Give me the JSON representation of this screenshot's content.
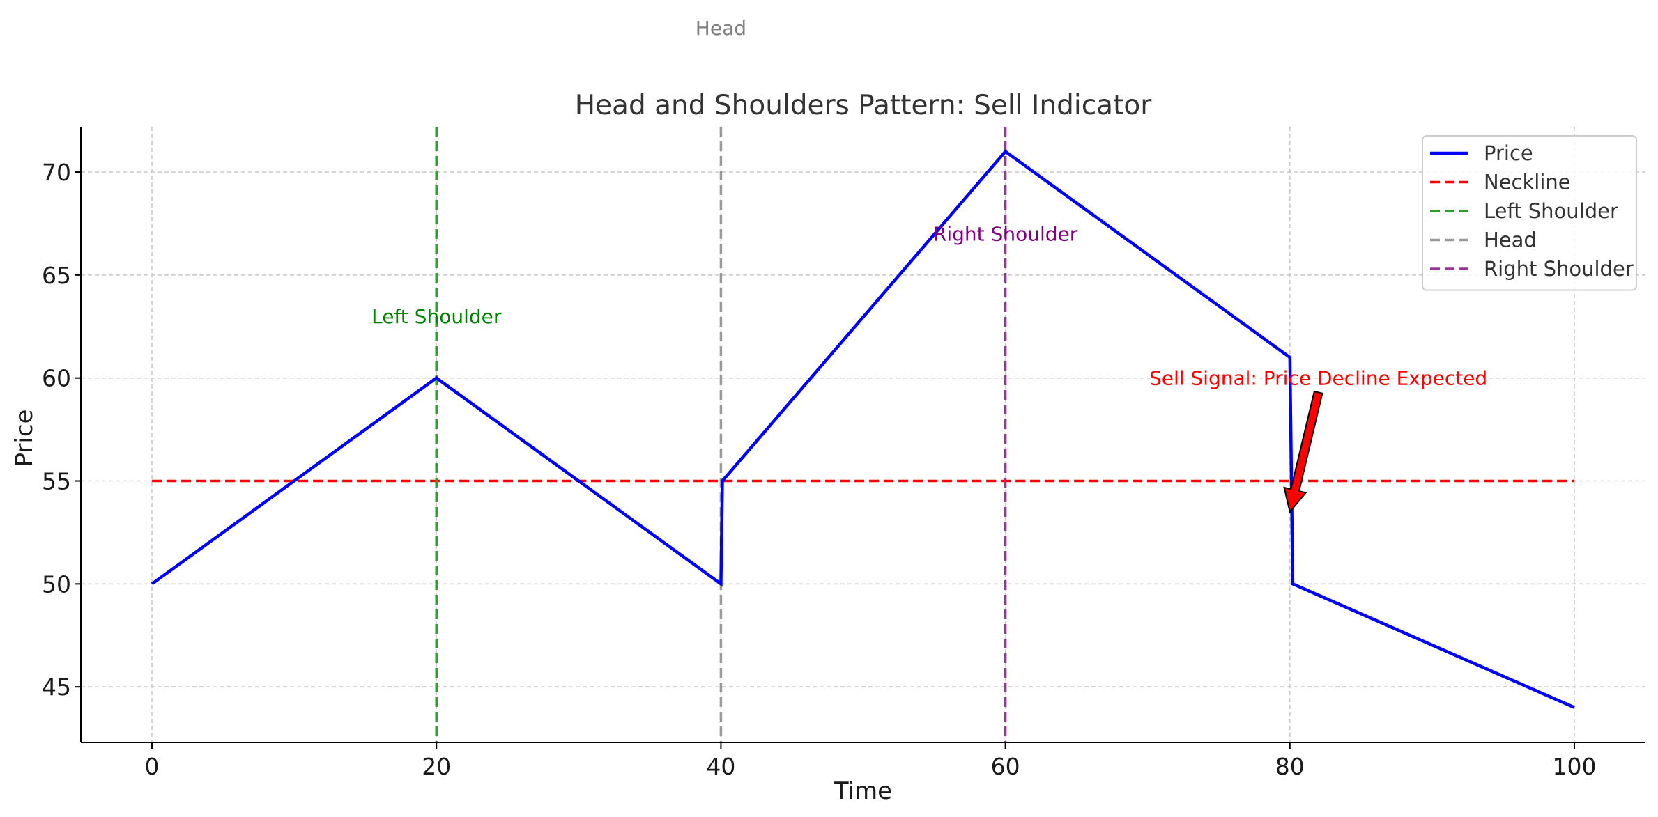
{
  "chart_data": {
    "type": "line",
    "title": "Head and Shoulders Pattern: Sell Indicator",
    "xlabel": "Time",
    "ylabel": "Price",
    "xlim": [
      -5,
      105
    ],
    "ylim": [
      42.3,
      72.2
    ],
    "xticks": [
      0,
      20,
      40,
      60,
      80,
      100
    ],
    "yticks": [
      45,
      50,
      55,
      60,
      65,
      70
    ],
    "grid": true,
    "legend_position": "top-right",
    "series": [
      {
        "name": "Price",
        "color": "#0000ff",
        "style": "solid",
        "points": [
          [
            0,
            50
          ],
          [
            20,
            60
          ],
          [
            40,
            50
          ],
          [
            40.1,
            55
          ],
          [
            60,
            71
          ],
          [
            80,
            61
          ],
          [
            80.2,
            50
          ],
          [
            100,
            44
          ]
        ]
      }
    ],
    "reference_lines": [
      {
        "name": "Neckline",
        "orientation": "horizontal",
        "value": 55,
        "from": 0,
        "to": 100,
        "color": "#ff0000"
      },
      {
        "name": "Left Shoulder",
        "orientation": "vertical",
        "value": 20,
        "color": "#2ca02c"
      },
      {
        "name": "Head",
        "orientation": "vertical",
        "value": 40,
        "color": "#999999"
      },
      {
        "name": "Right Shoulder",
        "orientation": "vertical",
        "value": 60,
        "color": "#993399"
      }
    ],
    "annotations": [
      {
        "text": "Left Shoulder",
        "x": 20,
        "y": 63,
        "color": "#008000"
      },
      {
        "text": "Head",
        "x": 40,
        "y": 77,
        "color": "#808080"
      },
      {
        "text": "Right Shoulder",
        "x": 60,
        "y": 67,
        "color": "#800080"
      },
      {
        "text": "Sell Signal: Price Decline Expected",
        "x": 82,
        "y": 60,
        "color": "#ff0000",
        "arrow_to": [
          80,
          53.5
        ],
        "arrow_from": [
          82,
          59.3
        ]
      }
    ]
  }
}
